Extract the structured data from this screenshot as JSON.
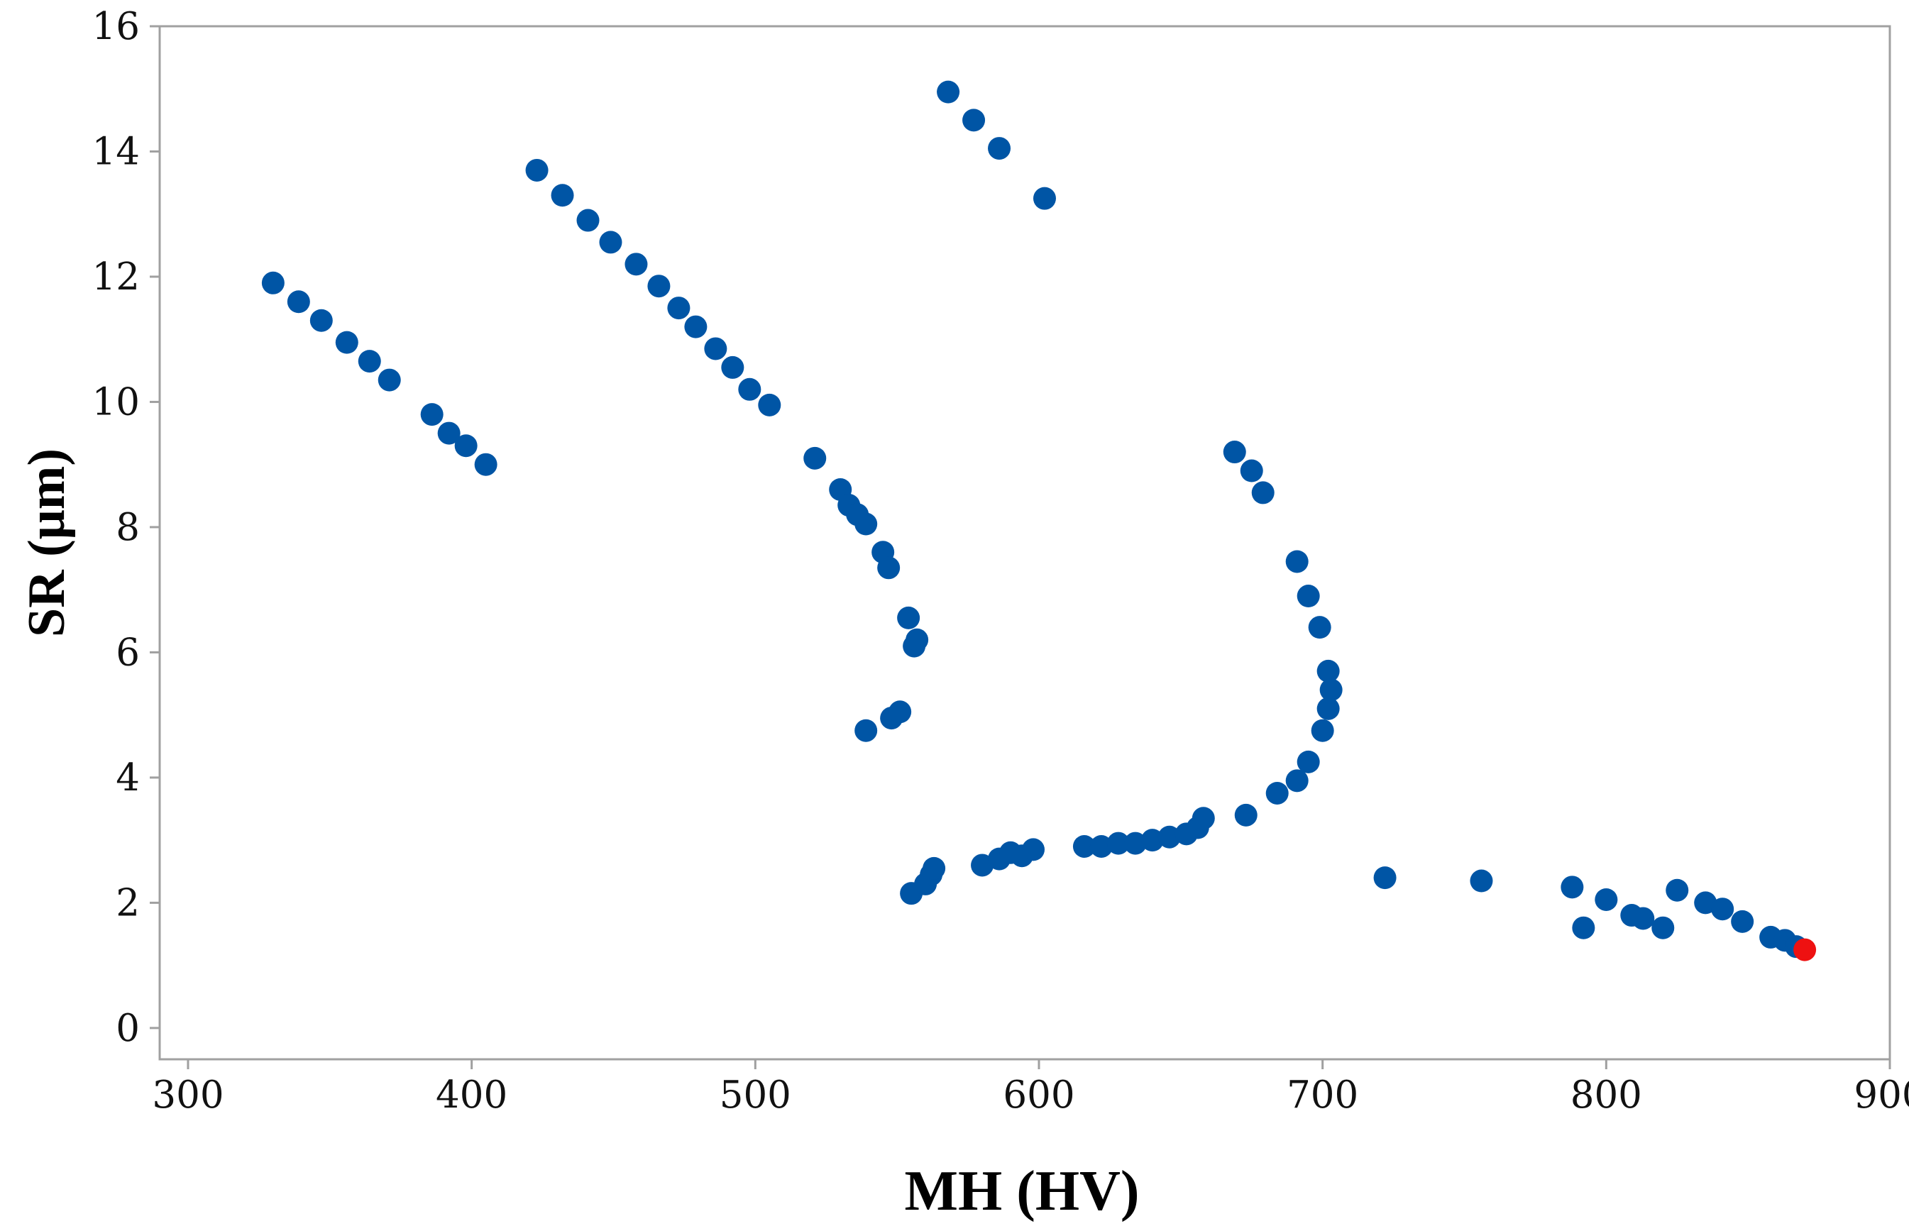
{
  "chart_data": {
    "type": "scatter",
    "title": "",
    "xlabel": "MH (HV)",
    "ylabel": "SR (μm)",
    "xlim": [
      290,
      900
    ],
    "ylim": [
      -0.5,
      16
    ],
    "xticks": [
      "300",
      "400",
      "500",
      "600",
      "700",
      "800",
      "900"
    ],
    "yticks": [
      "0",
      "2",
      "4",
      "6",
      "8",
      "10",
      "12",
      "14",
      "16"
    ],
    "grid": false,
    "legend": "none",
    "colors": {
      "points": "#0055A5",
      "highlight": "#EE1111",
      "axes": "#A0A0A0"
    },
    "series": [
      {
        "name": "points",
        "x": [
          330,
          339,
          347,
          356,
          364,
          371,
          386,
          392,
          398,
          405,
          423,
          432,
          441,
          449,
          458,
          466,
          473,
          479,
          486,
          492,
          498,
          505,
          521,
          530,
          533,
          536,
          539,
          545,
          547,
          554,
          556,
          557,
          539,
          548,
          551,
          568,
          577,
          586,
          602,
          555,
          560,
          562,
          563,
          580,
          586,
          590,
          594,
          598,
          616,
          622,
          628,
          634,
          640,
          646,
          652,
          656,
          658,
          673,
          669,
          675,
          679,
          691,
          695,
          699,
          702,
          703,
          702,
          700,
          695,
          691,
          684,
          722,
          756,
          788,
          792,
          800,
          809,
          813,
          820,
          825,
          835,
          841,
          848,
          858,
          863,
          867
        ],
        "y": [
          11.9,
          11.6,
          11.3,
          10.95,
          10.65,
          10.35,
          9.8,
          9.5,
          9.3,
          9.0,
          13.7,
          13.3,
          12.9,
          12.55,
          12.2,
          11.85,
          11.5,
          11.2,
          10.85,
          10.55,
          10.2,
          9.95,
          9.1,
          8.6,
          8.35,
          8.2,
          8.05,
          7.6,
          7.35,
          6.55,
          6.1,
          6.2,
          4.75,
          4.95,
          5.05,
          14.95,
          14.5,
          14.05,
          13.25,
          2.15,
          2.3,
          2.45,
          2.55,
          2.6,
          2.7,
          2.8,
          2.75,
          2.85,
          2.9,
          2.9,
          2.95,
          2.95,
          3.0,
          3.05,
          3.1,
          3.2,
          3.35,
          3.4,
          9.2,
          8.9,
          8.55,
          7.45,
          6.9,
          6.4,
          5.7,
          5.4,
          5.1,
          4.75,
          4.25,
          3.95,
          3.75,
          2.4,
          2.35,
          2.25,
          1.6,
          2.05,
          1.8,
          1.75,
          1.6,
          2.2,
          2.0,
          1.9,
          1.7,
          1.45,
          1.4,
          1.3
        ]
      },
      {
        "name": "highlight",
        "x": [
          870
        ],
        "y": [
          1.25
        ]
      }
    ]
  }
}
